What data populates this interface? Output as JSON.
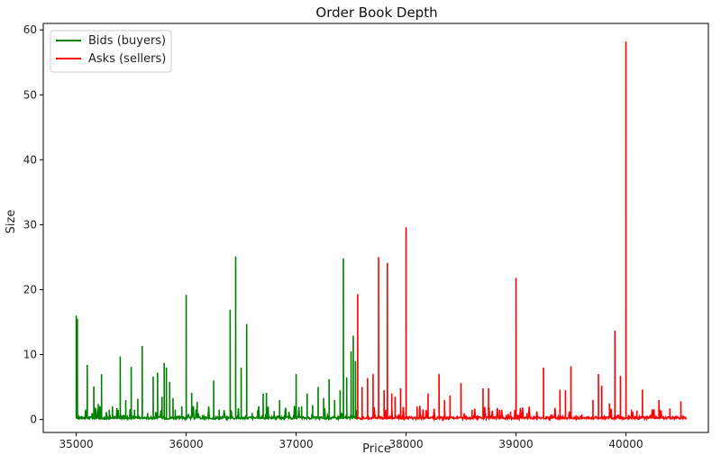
{
  "chart_data": {
    "type": "line",
    "title": "Order Book Depth",
    "xlabel": "Price",
    "ylabel": "Size",
    "xlim": [
      34700,
      40750
    ],
    "ylim": [
      -2,
      61
    ],
    "xticks": [
      35000,
      36000,
      37000,
      38000,
      39000,
      40000
    ],
    "yticks": [
      0,
      10,
      20,
      30,
      40,
      50,
      60
    ],
    "grid": false,
    "legend_position": "top-left",
    "colors": {
      "bids": "#008000",
      "asks": "#ff0000"
    },
    "series": [
      {
        "name": "Bids (buyers)",
        "color": "#008000",
        "x_range": [
          35000,
          37550
        ],
        "peaks": [
          [
            35000,
            16.0
          ],
          [
            35010,
            15.5
          ],
          [
            35100,
            8.4
          ],
          [
            35160,
            5.1
          ],
          [
            35200,
            2.4
          ],
          [
            35230,
            7.0
          ],
          [
            35300,
            1.5
          ],
          [
            35330,
            2.0
          ],
          [
            35400,
            9.7
          ],
          [
            35450,
            3.0
          ],
          [
            35500,
            8.1
          ],
          [
            35530,
            1.5
          ],
          [
            35560,
            3.2
          ],
          [
            35600,
            11.3
          ],
          [
            35650,
            1.0
          ],
          [
            35700,
            6.6
          ],
          [
            35740,
            7.2
          ],
          [
            35780,
            3.5
          ],
          [
            35800,
            8.7
          ],
          [
            35820,
            8.0
          ],
          [
            35850,
            5.8
          ],
          [
            35880,
            3.3
          ],
          [
            35900,
            1.5
          ],
          [
            35960,
            2.0
          ],
          [
            36000,
            19.2
          ],
          [
            36050,
            4.1
          ],
          [
            36100,
            2.7
          ],
          [
            36150,
            0.7
          ],
          [
            36200,
            1.0
          ],
          [
            36250,
            6.0
          ],
          [
            36300,
            1.5
          ],
          [
            36350,
            1.0
          ],
          [
            36400,
            16.9
          ],
          [
            36450,
            25.1
          ],
          [
            36500,
            8.0
          ],
          [
            36550,
            14.7
          ],
          [
            36600,
            1.0
          ],
          [
            36650,
            1.4
          ],
          [
            36700,
            4.0
          ],
          [
            36730,
            4.1
          ],
          [
            36800,
            1.3
          ],
          [
            36850,
            3.0
          ],
          [
            36900,
            1.5
          ],
          [
            37000,
            7.0
          ],
          [
            37050,
            2.0
          ],
          [
            37100,
            4.0
          ],
          [
            37150,
            2.2
          ],
          [
            37200,
            5.0
          ],
          [
            37250,
            3.3
          ],
          [
            37300,
            6.2
          ],
          [
            37350,
            3.0
          ],
          [
            37400,
            4.5
          ],
          [
            37430,
            24.8
          ],
          [
            37460,
            6.5
          ],
          [
            37500,
            10.5
          ],
          [
            37520,
            12.9
          ],
          [
            37540,
            9.0
          ]
        ]
      },
      {
        "name": "Asks (sellers)",
        "color": "#ff0000",
        "x_range": [
          37550,
          40550
        ],
        "peaks": [
          [
            37560,
            19.3
          ],
          [
            37600,
            5.0
          ],
          [
            37650,
            6.4
          ],
          [
            37700,
            7.0
          ],
          [
            37750,
            25.0
          ],
          [
            37800,
            4.5
          ],
          [
            37830,
            24.1
          ],
          [
            37870,
            4.0
          ],
          [
            37900,
            3.5
          ],
          [
            37950,
            4.8
          ],
          [
            38000,
            29.6
          ],
          [
            38100,
            2.0
          ],
          [
            38200,
            4.0
          ],
          [
            38300,
            7.0
          ],
          [
            38350,
            3.0
          ],
          [
            38400,
            3.7
          ],
          [
            38500,
            5.6
          ],
          [
            38600,
            1.5
          ],
          [
            38700,
            4.8
          ],
          [
            38750,
            4.8
          ],
          [
            38850,
            1.5
          ],
          [
            38950,
            1.2
          ],
          [
            39000,
            21.8
          ],
          [
            39100,
            1.0
          ],
          [
            39250,
            8.0
          ],
          [
            39400,
            4.6
          ],
          [
            39450,
            4.5
          ],
          [
            39500,
            8.2
          ],
          [
            39600,
            0.8
          ],
          [
            39700,
            3.0
          ],
          [
            39750,
            7.0
          ],
          [
            39780,
            5.2
          ],
          [
            39850,
            2.5
          ],
          [
            39900,
            13.7
          ],
          [
            39950,
            6.7
          ],
          [
            40000,
            58.2
          ],
          [
            40050,
            1.5
          ],
          [
            40100,
            1.4
          ],
          [
            40150,
            4.6
          ],
          [
            40250,
            1.0
          ],
          [
            40300,
            3.0
          ],
          [
            40400,
            1.7
          ],
          [
            40500,
            2.8
          ]
        ]
      }
    ]
  }
}
